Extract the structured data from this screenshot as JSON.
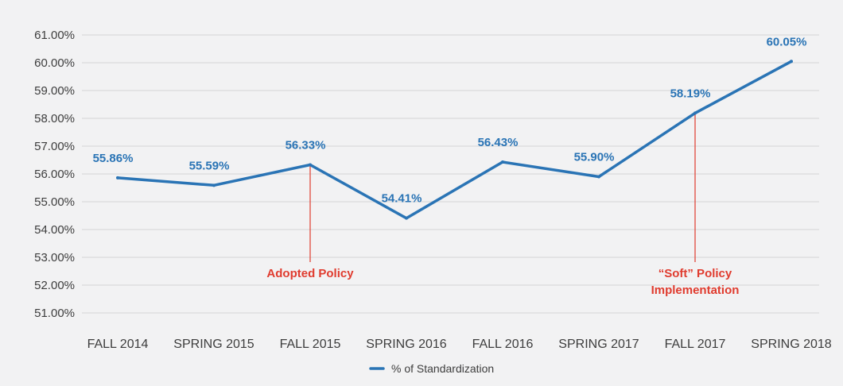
{
  "colors": {
    "background": "#f2f2f3",
    "series": "#2a74b5",
    "gridline": "#d4d4d6",
    "annotation": "#e03b2e",
    "tick_text": "#3d3d3d"
  },
  "chart_data": {
    "type": "line",
    "categories": [
      "FALL 2014",
      "SPRING 2015",
      "FALL 2015",
      "SPRING 2016",
      "FALL 2016",
      "SPRING 2017",
      "FALL 2017",
      "SPRING 2018"
    ],
    "series": [
      {
        "name": "% of Standardization",
        "values": [
          55.86,
          55.59,
          56.33,
          54.41,
          56.43,
          55.9,
          58.19,
          60.05
        ],
        "value_labels": [
          "55.86%",
          "55.59%",
          "56.33%",
          "54.41%",
          "56.43%",
          "55.90%",
          "58.19%",
          "60.05%"
        ]
      }
    ],
    "ylim": [
      51,
      61
    ],
    "yticks": [
      51,
      52,
      53,
      54,
      55,
      56,
      57,
      58,
      59,
      60,
      61
    ],
    "ytick_labels": [
      "51.00%",
      "52.00%",
      "53.00%",
      "54.00%",
      "55.00%",
      "56.00%",
      "57.00%",
      "58.00%",
      "59.00%",
      "60.00%",
      "61.00%"
    ],
    "grid": true,
    "legend": "bottom-center",
    "annotations": [
      {
        "category": "FALL 2015",
        "lines": [
          "Adopted Policy"
        ]
      },
      {
        "category": "FALL 2017",
        "lines": [
          "“Soft” Policy",
          "Implementation"
        ]
      }
    ]
  }
}
